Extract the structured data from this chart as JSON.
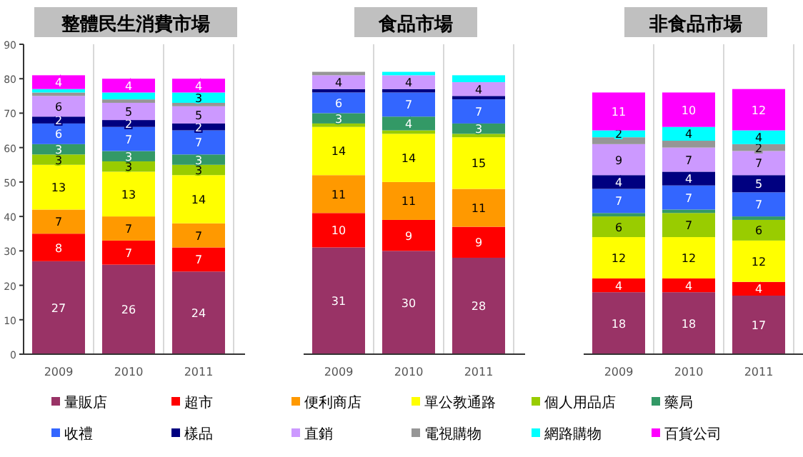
{
  "chart_data": [
    {
      "type": "bar",
      "title": "整體民生消費市場",
      "stacked": true,
      "legend": "bottom",
      "grid": false,
      "categories": [
        "2009",
        "2010",
        "2011"
      ],
      "ylim": [
        0,
        90
      ],
      "yticks": [
        0,
        10,
        20,
        30,
        40,
        50,
        60,
        70,
        80,
        90
      ],
      "series": [
        {
          "name": "量販店",
          "color": "#993366",
          "values": [
            27,
            26,
            24
          ],
          "value_labels": [
            "27",
            "26",
            "24"
          ]
        },
        {
          "name": "超市",
          "color": "#ff0000",
          "values": [
            8,
            7,
            7
          ],
          "value_labels": [
            "8",
            "7",
            "7"
          ]
        },
        {
          "name": "便利商店",
          "color": "#ff9900",
          "values": [
            7,
            7,
            7
          ],
          "value_labels": [
            "7",
            "7",
            "7"
          ]
        },
        {
          "name": "單公教通路",
          "color": "#ffff00",
          "values": [
            13,
            13,
            14
          ],
          "value_labels": [
            "13",
            "13",
            "14"
          ]
        },
        {
          "name": "個人用品店",
          "color": "#99cc00",
          "values": [
            3,
            3,
            3
          ],
          "value_labels": [
            "3",
            "3",
            "3"
          ]
        },
        {
          "name": "藥局",
          "color": "#339966",
          "values": [
            3,
            3,
            3
          ],
          "value_labels": [
            "3",
            "3",
            "3"
          ]
        },
        {
          "name": "收禮",
          "color": "#3366ff",
          "values": [
            6,
            7,
            7
          ],
          "value_labels": [
            "6",
            "7",
            "7"
          ]
        },
        {
          "name": "樣品",
          "color": "#000080",
          "values": [
            2,
            2,
            2
          ],
          "value_labels": [
            "2",
            "2",
            "2"
          ]
        },
        {
          "name": "直銷",
          "color": "#cc99ff",
          "values": [
            6,
            5,
            5
          ],
          "value_labels": [
            "6",
            "5",
            "5"
          ]
        },
        {
          "name": "電視購物",
          "color": "#969696",
          "values": [
            1,
            1,
            1
          ],
          "value_labels": [
            null,
            null,
            null
          ]
        },
        {
          "name": "網路購物",
          "color": "#00ffff",
          "values": [
            1,
            2,
            3
          ],
          "value_labels": [
            null,
            null,
            "3"
          ]
        },
        {
          "name": "百貨公司",
          "color": "#ff00ff",
          "values": [
            4,
            4,
            4
          ],
          "value_labels": [
            "4",
            "4",
            "4"
          ]
        }
      ]
    },
    {
      "type": "bar",
      "title": "食品市場",
      "stacked": true,
      "grid": false,
      "tick_labels": "x",
      "categories": [
        "2009",
        "2010",
        "2011"
      ],
      "ylim": [
        0,
        90
      ],
      "series": [
        {
          "color": "#993366",
          "values": [
            31,
            30,
            28
          ],
          "value_labels": [
            "31",
            "30",
            "28"
          ]
        },
        {
          "color": "#ff0000",
          "values": [
            10,
            9,
            9
          ],
          "value_labels": [
            "10",
            "9",
            "9"
          ]
        },
        {
          "color": "#ff9900",
          "values": [
            11,
            11,
            11
          ],
          "value_labels": [
            "11",
            "11",
            "11"
          ]
        },
        {
          "color": "#ffff00",
          "values": [
            14,
            14,
            15
          ],
          "value_labels": [
            "14",
            "14",
            "15"
          ]
        },
        {
          "color": "#99cc00",
          "values": [
            1,
            1,
            1
          ],
          "value_labels": [
            null,
            null,
            null
          ]
        },
        {
          "color": "#339966",
          "values": [
            3,
            4,
            3
          ],
          "value_labels": [
            "3",
            "4",
            "3"
          ]
        },
        {
          "color": "#3366ff",
          "values": [
            6,
            7,
            7
          ],
          "value_labels": [
            "6",
            "7",
            "7"
          ]
        },
        {
          "color": "#000080",
          "values": [
            1,
            1,
            1
          ],
          "value_labels": [
            null,
            null,
            null
          ]
        },
        {
          "color": "#cc99ff",
          "values": [
            4,
            4,
            4
          ],
          "value_labels": [
            "4",
            "4",
            "4"
          ]
        },
        {
          "color": "#969696",
          "values": [
            1,
            null,
            null
          ],
          "value_labels": [
            null,
            null,
            null
          ]
        },
        {
          "color": "#00ffff",
          "values": [
            null,
            1,
            2
          ],
          "value_labels": [
            null,
            null,
            null
          ]
        }
      ]
    },
    {
      "type": "bar",
      "title": "非食品市場",
      "stacked": true,
      "grid": false,
      "tick_labels": "x",
      "categories": [
        "2009",
        "2010",
        "2011"
      ],
      "ylim": [
        0,
        90
      ],
      "series": [
        {
          "color": "#993366",
          "values": [
            18,
            18,
            17
          ],
          "value_labels": [
            "18",
            "18",
            "17"
          ]
        },
        {
          "color": "#ff0000",
          "values": [
            4,
            4,
            4
          ],
          "value_labels": [
            "4",
            "4",
            "4"
          ]
        },
        {
          "color": "#ffff00",
          "values": [
            12,
            12,
            12
          ],
          "value_labels": [
            "12",
            "12",
            "12"
          ]
        },
        {
          "color": "#99cc00",
          "values": [
            6,
            7,
            6
          ],
          "value_labels": [
            "6",
            "7",
            "6"
          ]
        },
        {
          "color": "#339966",
          "values": [
            1,
            1,
            1
          ],
          "value_labels": [
            null,
            null,
            null
          ]
        },
        {
          "color": "#3366ff",
          "values": [
            7,
            7,
            7
          ],
          "value_labels": [
            "7",
            "7",
            "7"
          ]
        },
        {
          "color": "#000080",
          "values": [
            4,
            4,
            5
          ],
          "value_labels": [
            "4",
            "4",
            "5"
          ]
        },
        {
          "color": "#cc99ff",
          "values": [
            9,
            7,
            7
          ],
          "value_labels": [
            "9",
            "7",
            "7"
          ]
        },
        {
          "color": "#969696",
          "values": [
            2,
            2,
            2
          ],
          "value_labels": [
            null,
            null,
            "2"
          ]
        },
        {
          "color": "#00ffff",
          "values": [
            2,
            4,
            4
          ],
          "value_labels": [
            "2",
            "4",
            "4"
          ]
        },
        {
          "color": "#ff00ff",
          "values": [
            11,
            10,
            12
          ],
          "value_labels": [
            "11",
            "10",
            "12"
          ]
        }
      ]
    }
  ]
}
